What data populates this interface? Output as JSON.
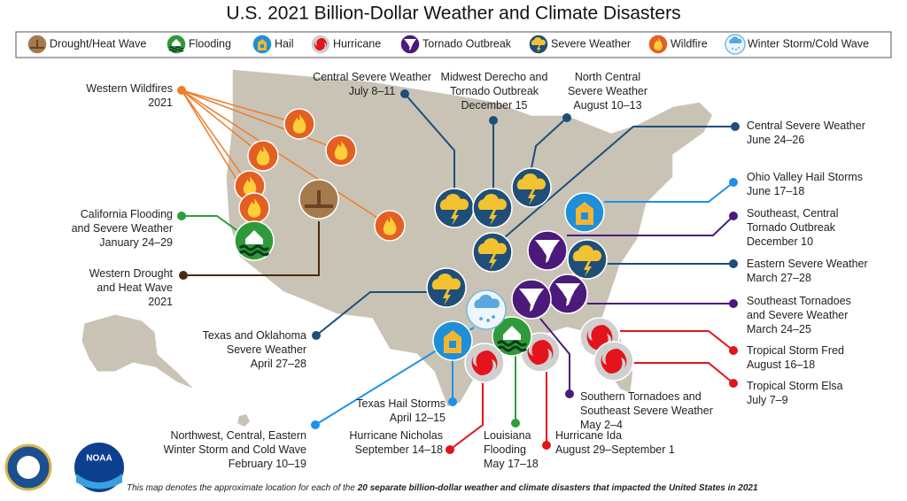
{
  "title": "U.S. 2021 Billion-Dollar Weather and Climate Disasters",
  "legend": [
    "Drought/Heat Wave",
    "Flooding",
    "Hail",
    "Hurricane",
    "Tornado Outbreak",
    "Severe Weather",
    "Wildfire",
    "Winter Storm/Cold Wave"
  ],
  "events": [
    {
      "lines": [
        "Western Wildfires",
        "2021"
      ]
    },
    {
      "lines": [
        "California Flooding",
        "and Severe Weather",
        "January 24–29"
      ]
    },
    {
      "lines": [
        "Western Drought",
        "and Heat Wave",
        "2021"
      ]
    },
    {
      "lines": [
        "Central Severe Weather",
        "July 8–11"
      ]
    },
    {
      "lines": [
        "Midwest Derecho and",
        "Tornado Outbreak",
        "December 15"
      ]
    },
    {
      "lines": [
        "North Central",
        "Severe Weather",
        "August 10–13"
      ]
    },
    {
      "lines": [
        "Central Severe Weather",
        "June 24–26"
      ]
    },
    {
      "lines": [
        "Ohio Valley Hail Storms",
        "June 17–18"
      ]
    },
    {
      "lines": [
        "Southeast, Central",
        "Tornado Outbreak",
        "December 10"
      ]
    },
    {
      "lines": [
        "Eastern Severe Weather",
        "March 27–28"
      ]
    },
    {
      "lines": [
        "Southeast Tornadoes",
        "and Severe Weather",
        "March 24–25"
      ]
    },
    {
      "lines": [
        "Tropical Storm Fred",
        "August 16–18"
      ]
    },
    {
      "lines": [
        "Tropical Storm Elsa",
        "July 7–9"
      ]
    },
    {
      "lines": [
        "Southern Tornadoes and",
        "Southeast Severe Weather",
        "May 2–4"
      ]
    },
    {
      "lines": [
        "Hurricane Ida",
        "August 29–September 1"
      ]
    },
    {
      "lines": [
        "Louisiana",
        "Flooding",
        "May 17–18"
      ]
    },
    {
      "lines": [
        "Hurricane Nicholas",
        "September 14–18"
      ]
    },
    {
      "lines": [
        "Texas Hail Storms",
        "April 12–15"
      ]
    },
    {
      "lines": [
        "Northwest, Central, Eastern",
        "Winter Storm and Cold Wave",
        "February 10–19"
      ]
    },
    {
      "lines": [
        "Texas and Oklahoma",
        "Severe Weather",
        "April 27–28"
      ]
    }
  ],
  "logo": "NOAA",
  "footer": {
    "text": "This map denotes the approximate location for each of the",
    "bold": "20 separate billion-dollar weather and climate disasters that impacted the United States in 2021"
  }
}
